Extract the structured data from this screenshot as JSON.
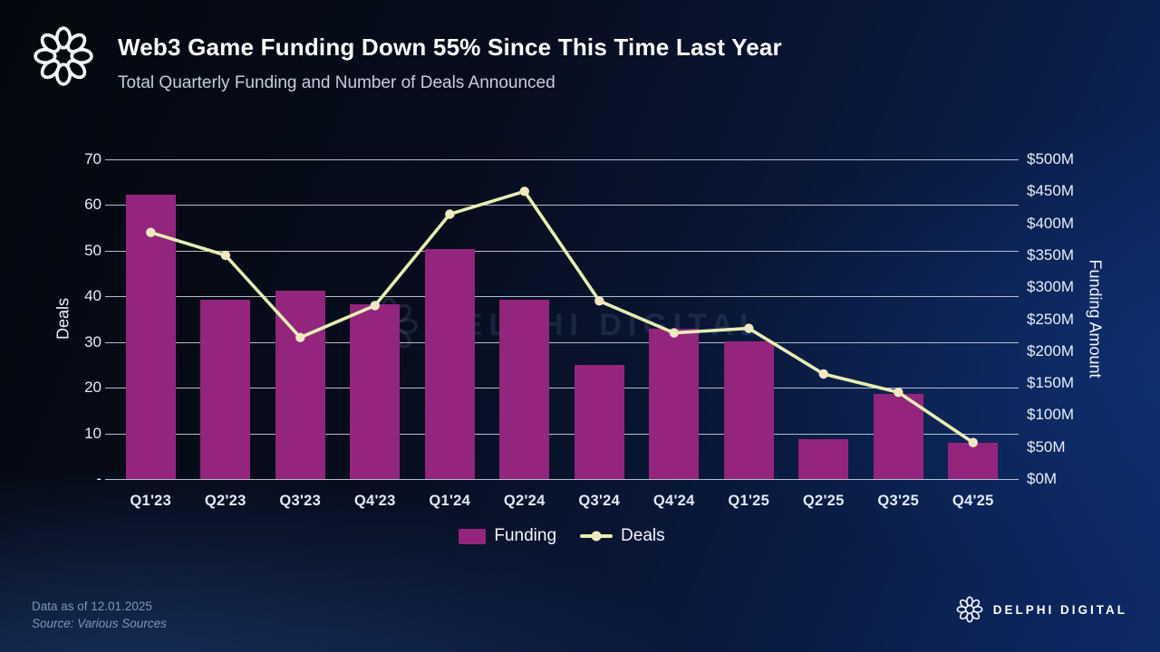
{
  "header": {
    "title": "Web3 Game Funding Down 55% Since This Time Last Year",
    "subtitle": "Total Quarterly Funding and Number of Deals Announced"
  },
  "branding": {
    "name": "DELPHI DIGITAL",
    "logo": "delphi-knot-icon"
  },
  "footer": {
    "data_as_of": "Data as of 12.01.2025",
    "source": "Source: Various Sources"
  },
  "colors": {
    "bar": "#93257c",
    "line": "#e7efb2",
    "marker": "#f1e7c3",
    "gridline": "rgba(225,233,246,0.8)",
    "background_accent": "#0e2a68",
    "title_text": "#ffffff",
    "subtitle_text": "#c5cfdd",
    "tick_text": "#e8eef8",
    "footer_text": "#7f96bb"
  },
  "chart_data": {
    "type": "bar",
    "note": "combo chart: bars = quarterly funding on right axis, line = number of deals on left axis",
    "categories": [
      "Q1'23",
      "Q2'23",
      "Q3'23",
      "Q4'23",
      "Q1'24",
      "Q2'24",
      "Q3'24",
      "Q4'24",
      "Q1'25",
      "Q2'25",
      "Q3'25",
      "Q4'25"
    ],
    "series": [
      {
        "name": "Funding",
        "type": "bar",
        "axis": "right",
        "unit": "$M",
        "values": [
          445,
          280,
          295,
          273,
          360,
          280,
          178,
          235,
          215,
          62,
          133,
          57
        ]
      },
      {
        "name": "Deals",
        "type": "line",
        "axis": "left",
        "unit": "deals",
        "values": [
          54,
          49,
          31,
          38,
          58,
          63,
          39,
          32,
          33,
          23,
          19,
          8
        ]
      }
    ],
    "left_axis": {
      "label": "Deals",
      "min": 0,
      "max": 70,
      "ticks": [
        "70",
        "60",
        "50",
        "40",
        "30",
        "20",
        "10",
        "-"
      ]
    },
    "right_axis": {
      "label": "Funding Amount",
      "min": 0,
      "max": 500,
      "ticks": [
        "$500M",
        "$450M",
        "$400M",
        "$350M",
        "$300M",
        "$250M",
        "$200M",
        "$150M",
        "$100M",
        "$50M",
        "$0M"
      ]
    },
    "grid": "horizontal gridlines at left-axis tick positions",
    "legend_position": "bottom-center"
  }
}
